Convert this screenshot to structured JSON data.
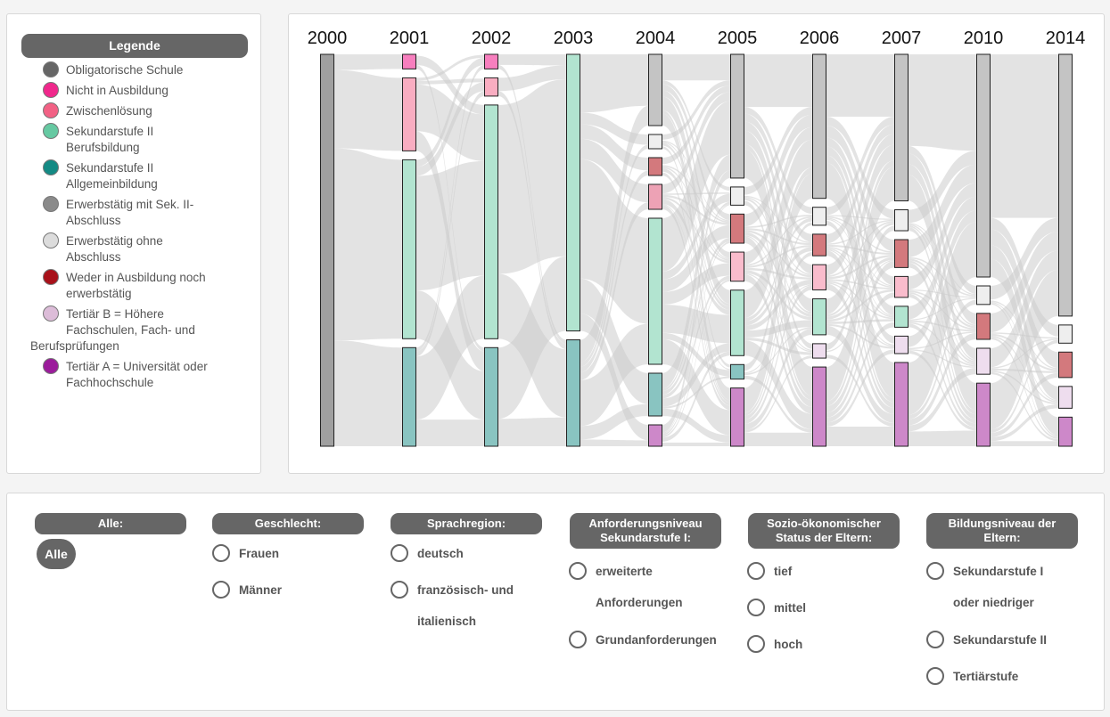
{
  "legend": {
    "title": "Legende",
    "items": [
      {
        "line1": "Obligatorische Schule",
        "line2": "",
        "line3": "",
        "color": "#666666"
      },
      {
        "line1": "Nicht in Ausbildung",
        "line2": "",
        "line3": "",
        "color": "#f0288c"
      },
      {
        "line1": "Zwischenlösung",
        "line2": "",
        "line3": "",
        "color": "#f26185"
      },
      {
        "line1": "Sekundarstufe II",
        "line2": "Berufsbildung",
        "line3": "",
        "color": "#66c9a2"
      },
      {
        "line1": "Sekundarstufe II",
        "line2": "Allgemeinbildung",
        "line3": "",
        "color": "#148a84"
      },
      {
        "line1": "Erwerbstätig mit Sek. II-",
        "line2": "Abschluss",
        "line3": "",
        "color": "#8a8a8a"
      },
      {
        "line1": "Erwerbstätig ohne",
        "line2": "Abschluss",
        "line3": "",
        "color": "#dcdcdc"
      },
      {
        "line1": "Weder in Ausbildung noch",
        "line2": "erwerbstätig",
        "line3": "",
        "color": "#a8111a"
      },
      {
        "line1": "Tertiär B = Höhere",
        "line2": "Fachschulen, Fach- und",
        "line3": "Berufsprüfungen",
        "color": "#dcbcd8"
      },
      {
        "line1": "Tertiär A = Universität oder",
        "line2": "Fachhochschule",
        "line3": "",
        "color": "#9b1c9b"
      }
    ]
  },
  "chart_data": {
    "type": "sankey",
    "years": [
      "2000",
      "2001",
      "2002",
      "2003",
      "2004",
      "2005",
      "2006",
      "2007",
      "2010",
      "2014"
    ],
    "link_color": "#cccccc",
    "nodes": [
      {
        "year": "2000",
        "category": "Obligatorische Schule",
        "share": 1.0,
        "color": "#a0a0a0"
      },
      {
        "year": "2001",
        "category": "Nicht in Ausbildung",
        "share": 0.04,
        "color": "#f77fbe"
      },
      {
        "year": "2001",
        "category": "Zwischenlösung",
        "share": 0.2,
        "color": "#f9adc1"
      },
      {
        "year": "2001",
        "category": "Sekundarstufe II Berufsbildung",
        "share": 0.49,
        "color": "#b2e4d0"
      },
      {
        "year": "2001",
        "category": "Sekundarstufe II Allgemeinbildung",
        "share": 0.27,
        "color": "#89c4c1"
      },
      {
        "year": "2002",
        "category": "Nicht in Ausbildung",
        "share": 0.04,
        "color": "#f77fbe"
      },
      {
        "year": "2002",
        "category": "Zwischenlösung",
        "share": 0.05,
        "color": "#f9adc1"
      },
      {
        "year": "2002",
        "category": "Sekundarstufe II Berufsbildung",
        "share": 0.64,
        "color": "#b2e4d0"
      },
      {
        "year": "2002",
        "category": "Sekundarstufe II Allgemeinbildung",
        "share": 0.27,
        "color": "#89c4c1"
      },
      {
        "year": "2003",
        "category": "Sekundarstufe II Berufsbildung",
        "share": 0.65,
        "color": "#b2e4d0"
      },
      {
        "year": "2003",
        "category": "Sekundarstufe II Allgemeinbildung",
        "share": 0.25,
        "color": "#89c4c1"
      },
      {
        "year": "2004",
        "category": "Erwerbstätig mit Sek. II-Abschluss",
        "share": 0.2,
        "color": "#c4c4c4"
      },
      {
        "year": "2004",
        "category": "Erwerbstätig ohne Abschluss",
        "share": 0.04,
        "color": "#eeeeee"
      },
      {
        "year": "2004",
        "category": "Weder in Ausbildung noch erwerbstätig",
        "share": 0.05,
        "color": "#d3797d"
      },
      {
        "year": "2004",
        "category": "Zwischenlösung",
        "share": 0.07,
        "color": "#eda2b5"
      },
      {
        "year": "2004",
        "category": "Sekundarstufe II Berufsbildung",
        "share": 0.41,
        "color": "#b2e4d0"
      },
      {
        "year": "2004",
        "category": "Sekundarstufe II Allgemeinbildung",
        "share": 0.12,
        "color": "#89c4c1"
      },
      {
        "year": "2004",
        "category": "Tertiär A = Universität oder Fachhochschule",
        "share": 0.06,
        "color": "#cd88c9"
      },
      {
        "year": "2005",
        "category": "Erwerbstätig mit Sek. II-Abschluss",
        "share": 0.34,
        "color": "#c4c4c4"
      },
      {
        "year": "2005",
        "category": "Erwerbstätig ohne Abschluss",
        "share": 0.05,
        "color": "#eeeeee"
      },
      {
        "year": "2005",
        "category": "Weder in Ausbildung noch erwerbstätig",
        "share": 0.08,
        "color": "#d3797d"
      },
      {
        "year": "2005",
        "category": "Zwischenlösung",
        "share": 0.08,
        "color": "#f9bccc"
      },
      {
        "year": "2005",
        "category": "Sekundarstufe II Berufsbildung",
        "share": 0.18,
        "color": "#b2e4d0"
      },
      {
        "year": "2005",
        "category": "Sekundarstufe II Allgemeinbildung",
        "share": 0.04,
        "color": "#89c4c1"
      },
      {
        "year": "2005",
        "category": "Tertiär A = Universität oder Fachhochschule",
        "share": 0.16,
        "color": "#cd88c9"
      },
      {
        "year": "2006",
        "category": "Erwerbstätig mit Sek. II-Abschluss",
        "share": 0.4,
        "color": "#c4c4c4"
      },
      {
        "year": "2006",
        "category": "Erwerbstätig ohne Abschluss",
        "share": 0.05,
        "color": "#eeeeee"
      },
      {
        "year": "2006",
        "category": "Weder in Ausbildung noch erwerbstätig",
        "share": 0.06,
        "color": "#d3797d"
      },
      {
        "year": "2006",
        "category": "Zwischenlösung",
        "share": 0.07,
        "color": "#f9bccc"
      },
      {
        "year": "2006",
        "category": "Sekundarstufe II Berufsbildung",
        "share": 0.1,
        "color": "#b2e4d0"
      },
      {
        "year": "2006",
        "category": "Tertiär B = Höhere Fachschulen, Fach- und Berufsprüfungen",
        "share": 0.04,
        "color": "#eeddee"
      },
      {
        "year": "2006",
        "category": "Tertiär A = Universität oder Fachhochschule",
        "share": 0.22,
        "color": "#cd88c9"
      },
      {
        "year": "2007",
        "category": "Erwerbstätig mit Sek. II-Abschluss",
        "share": 0.42,
        "color": "#c4c4c4"
      },
      {
        "year": "2007",
        "category": "Erwerbstätig ohne Abschluss",
        "share": 0.06,
        "color": "#eeeeee"
      },
      {
        "year": "2007",
        "category": "Weder in Ausbildung noch erwerbstätig",
        "share": 0.08,
        "color": "#d3797d"
      },
      {
        "year": "2007",
        "category": "Zwischenlösung",
        "share": 0.06,
        "color": "#f9bccc"
      },
      {
        "year": "2007",
        "category": "Sekundarstufe II Berufsbildung",
        "share": 0.06,
        "color": "#b2e4d0"
      },
      {
        "year": "2007",
        "category": "Tertiär B = Höhere Fachschulen, Fach- und Berufsprüfungen",
        "share": 0.05,
        "color": "#eeddee"
      },
      {
        "year": "2007",
        "category": "Tertiär A = Universität oder Fachhochschule",
        "share": 0.24,
        "color": "#cd88c9"
      },
      {
        "year": "2010",
        "category": "Erwerbstätig mit Sek. II-Abschluss",
        "share": 0.6,
        "color": "#c4c4c4"
      },
      {
        "year": "2010",
        "category": "Erwerbstätig ohne Abschluss",
        "share": 0.05,
        "color": "#eeeeee"
      },
      {
        "year": "2010",
        "category": "Weder in Ausbildung noch erwerbstätig",
        "share": 0.07,
        "color": "#d3797d"
      },
      {
        "year": "2010",
        "category": "Tertiär B = Höhere Fachschulen, Fach- und Berufsprüfungen",
        "share": 0.07,
        "color": "#eeddee"
      },
      {
        "year": "2010",
        "category": "Tertiär A = Universität oder Fachhochschule",
        "share": 0.17,
        "color": "#cd88c9"
      },
      {
        "year": "2014",
        "category": "Erwerbstätig mit Sek. II-Abschluss",
        "share": 0.72,
        "color": "#c4c4c4"
      },
      {
        "year": "2014",
        "category": "Erwerbstätig ohne Abschluss",
        "share": 0.05,
        "color": "#eeeeee"
      },
      {
        "year": "2014",
        "category": "Weder in Ausbildung noch erwerbstätig",
        "share": 0.07,
        "color": "#d3797d"
      },
      {
        "year": "2014",
        "category": "Tertiär B = Höhere Fachschulen, Fach- und Berufsprüfungen",
        "share": 0.06,
        "color": "#eeddee"
      },
      {
        "year": "2014",
        "category": "Tertiär A = Universität oder Fachhochschule",
        "share": 0.08,
        "color": "#cd88c9"
      }
    ]
  },
  "filters": {
    "alle": {
      "title": "Alle:",
      "button": "Alle"
    },
    "geschlecht": {
      "title": "Geschlecht:",
      "options": [
        "Frauen",
        "Männer"
      ]
    },
    "sprachregion": {
      "title": "Sprachregion:",
      "opt1": "deutsch",
      "opt2a": "französisch- und",
      "opt2b": "italienisch"
    },
    "anforderung": {
      "title1": "Anforderungsniveau",
      "title2": "Sekundarstufe I:",
      "opt1a": "erweiterte",
      "opt1b": "Anforderungen",
      "opt2": "Grundanforderungen"
    },
    "sozio": {
      "title1": "Sozio-ökonomischer",
      "title2": "Status der Eltern:",
      "options": [
        "tief",
        "mittel",
        "hoch"
      ]
    },
    "bildung": {
      "title1": "Bildungsniveau der",
      "title2": "Eltern:",
      "opt1a": "Sekundarstufe I",
      "opt1b": "oder niedriger",
      "opt2": "Sekundarstufe II",
      "opt3": "Tertiärstufe"
    }
  }
}
